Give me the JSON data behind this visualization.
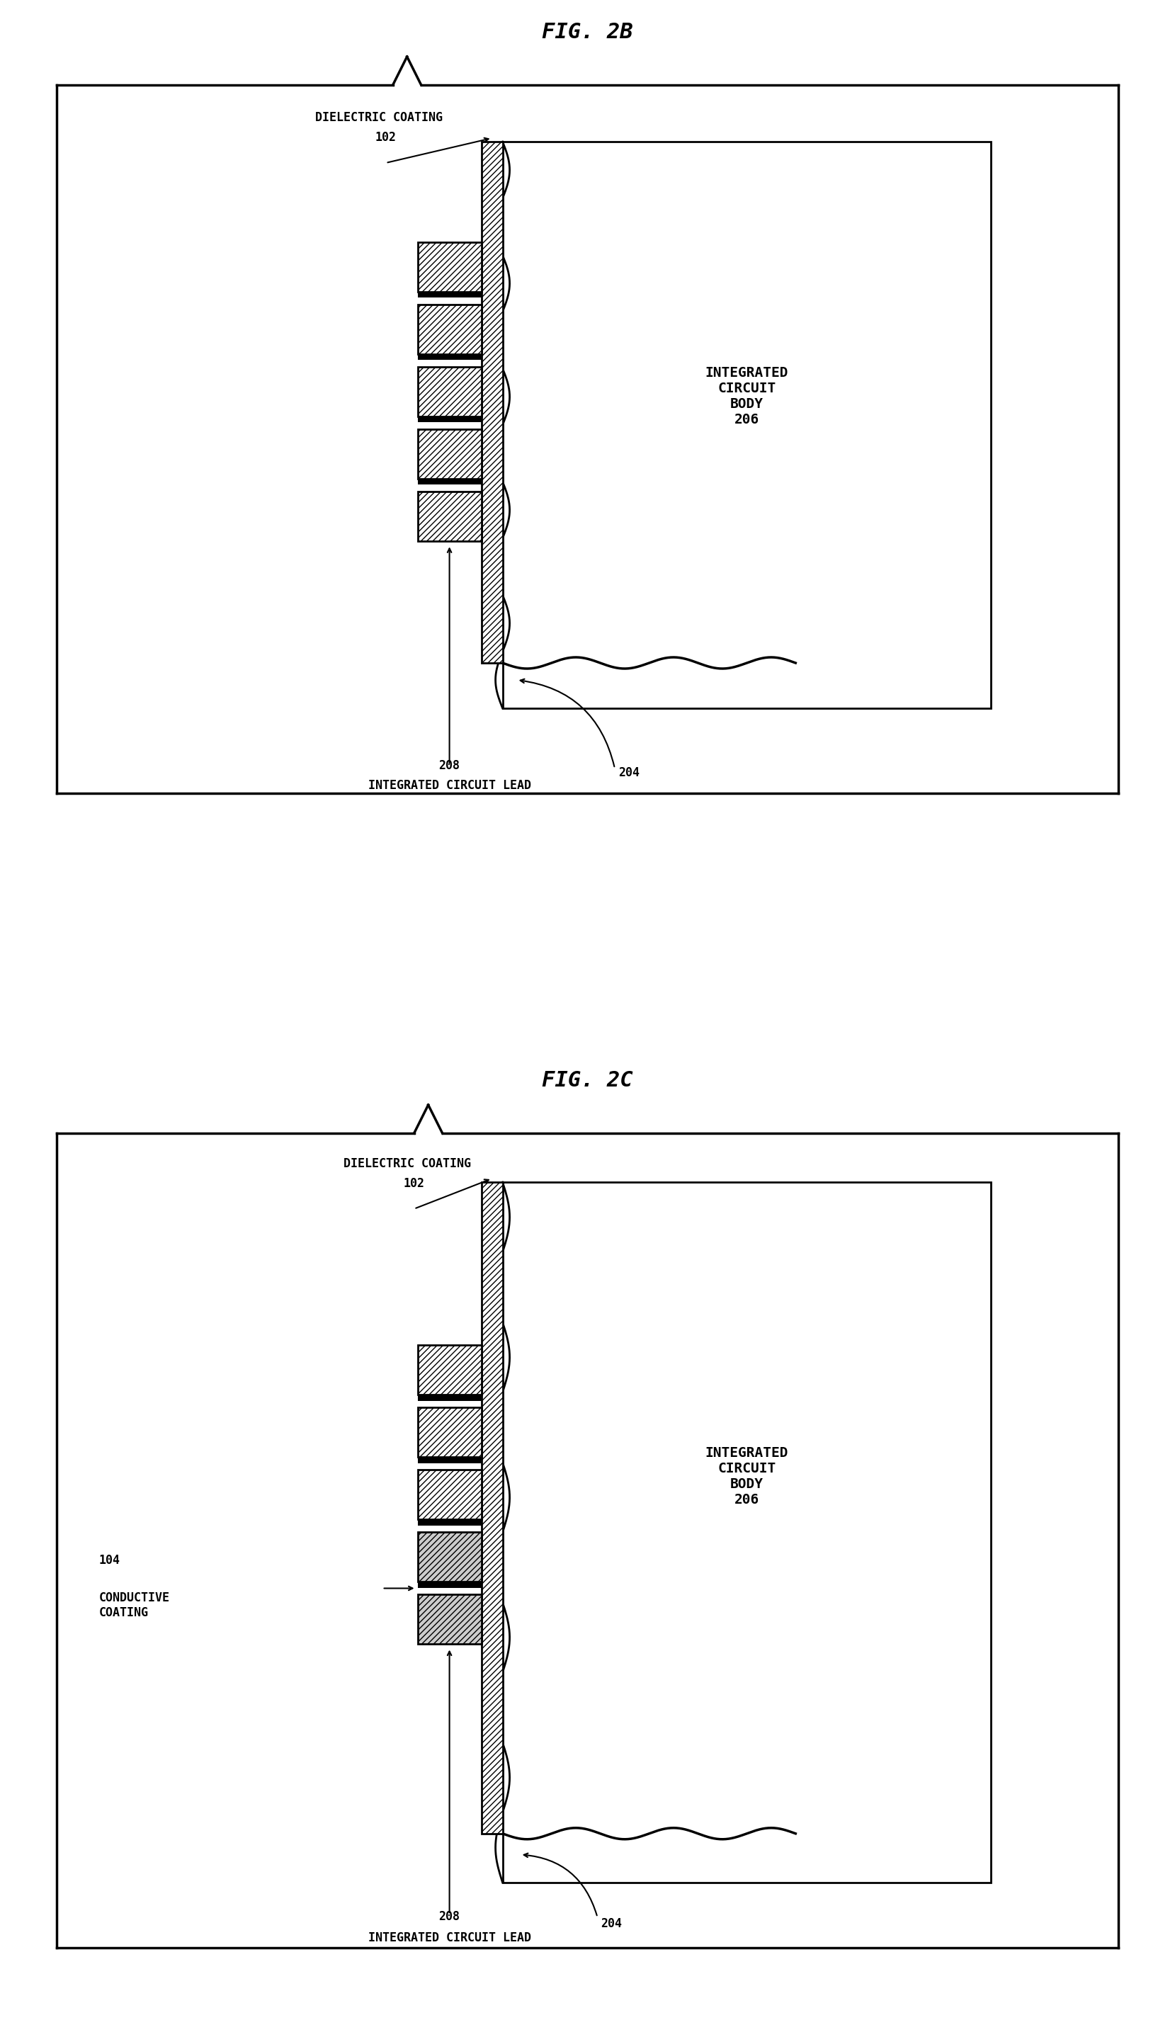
{
  "fig_title_2b": "FIG. 2B",
  "fig_title_2c": "FIG. 2C",
  "bg_color": "#ffffff",
  "label_dielectric_coating": "DIELECTRIC COATING",
  "label_102": "102",
  "label_ic_body": "INTEGRATED\nCIRCUIT\nBODY\n206",
  "label_208": "208",
  "label_ic_lead": "INTEGRATED CIRCUIT LEAD",
  "label_204": "204",
  "label_104": "104",
  "label_conductive_coating": "CONDUCTIVE\nCOATING",
  "font_title": 22,
  "font_label": 12,
  "fig_width": 16.59,
  "fig_height": 28.76
}
